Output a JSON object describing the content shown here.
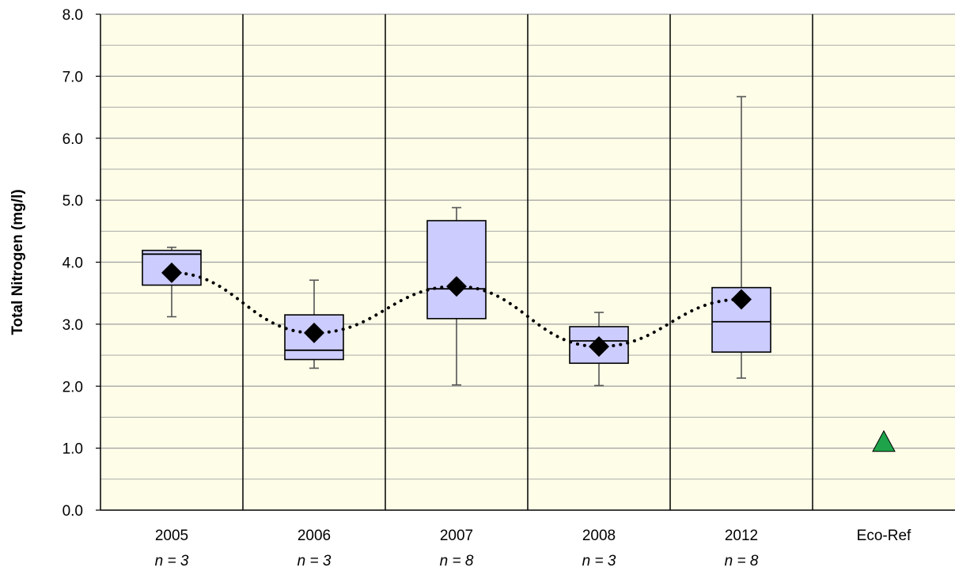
{
  "chart_data": {
    "type": "boxplot",
    "ylabel": "Total Nitrogen (mg/l)",
    "ylim": [
      0,
      8
    ],
    "y_major_step": 1,
    "y_minor_step": 0.5,
    "y_tick_labels": [
      "0.0",
      "1.0",
      "2.0",
      "3.0",
      "4.0",
      "5.0",
      "6.0",
      "7.0",
      "8.0"
    ],
    "categories": [
      "2005",
      "2006",
      "2007",
      "2008",
      "2012",
      "Eco-Ref"
    ],
    "sample_sizes": [
      "n = 3",
      "n = 3",
      "n = 8",
      "n = 3",
      "n = 8",
      ""
    ],
    "boxes": [
      {
        "category": "2005",
        "min": 3.12,
        "q1": 3.63,
        "median": 4.13,
        "q3": 4.19,
        "max": 4.24,
        "mean": 3.83
      },
      {
        "category": "2006",
        "min": 2.29,
        "q1": 2.43,
        "median": 2.58,
        "q3": 3.15,
        "max": 3.71,
        "mean": 2.86
      },
      {
        "category": "2007",
        "min": 2.02,
        "q1": 3.09,
        "median": 3.57,
        "q3": 4.67,
        "max": 4.88,
        "mean": 3.61
      },
      {
        "category": "2008",
        "min": 2.01,
        "q1": 2.37,
        "median": 2.73,
        "q3": 2.96,
        "max": 3.19,
        "mean": 2.64
      },
      {
        "category": "2012",
        "min": 2.13,
        "q1": 2.55,
        "median": 3.04,
        "q3": 3.59,
        "max": 6.67,
        "mean": 3.4
      }
    ],
    "mean_trend": "dotted",
    "reference": {
      "category": "Eco-Ref",
      "value": 1.1,
      "marker": "triangle"
    },
    "colors": {
      "plot_background": "#fdfde8",
      "box_fill": "#ccccff",
      "box_stroke": "#000000",
      "whisker": "#555555",
      "mean_marker": "#000000",
      "reference_marker": "#1fa34a",
      "gridline": "#a0a0a0"
    },
    "grid": true,
    "legend": "none"
  }
}
